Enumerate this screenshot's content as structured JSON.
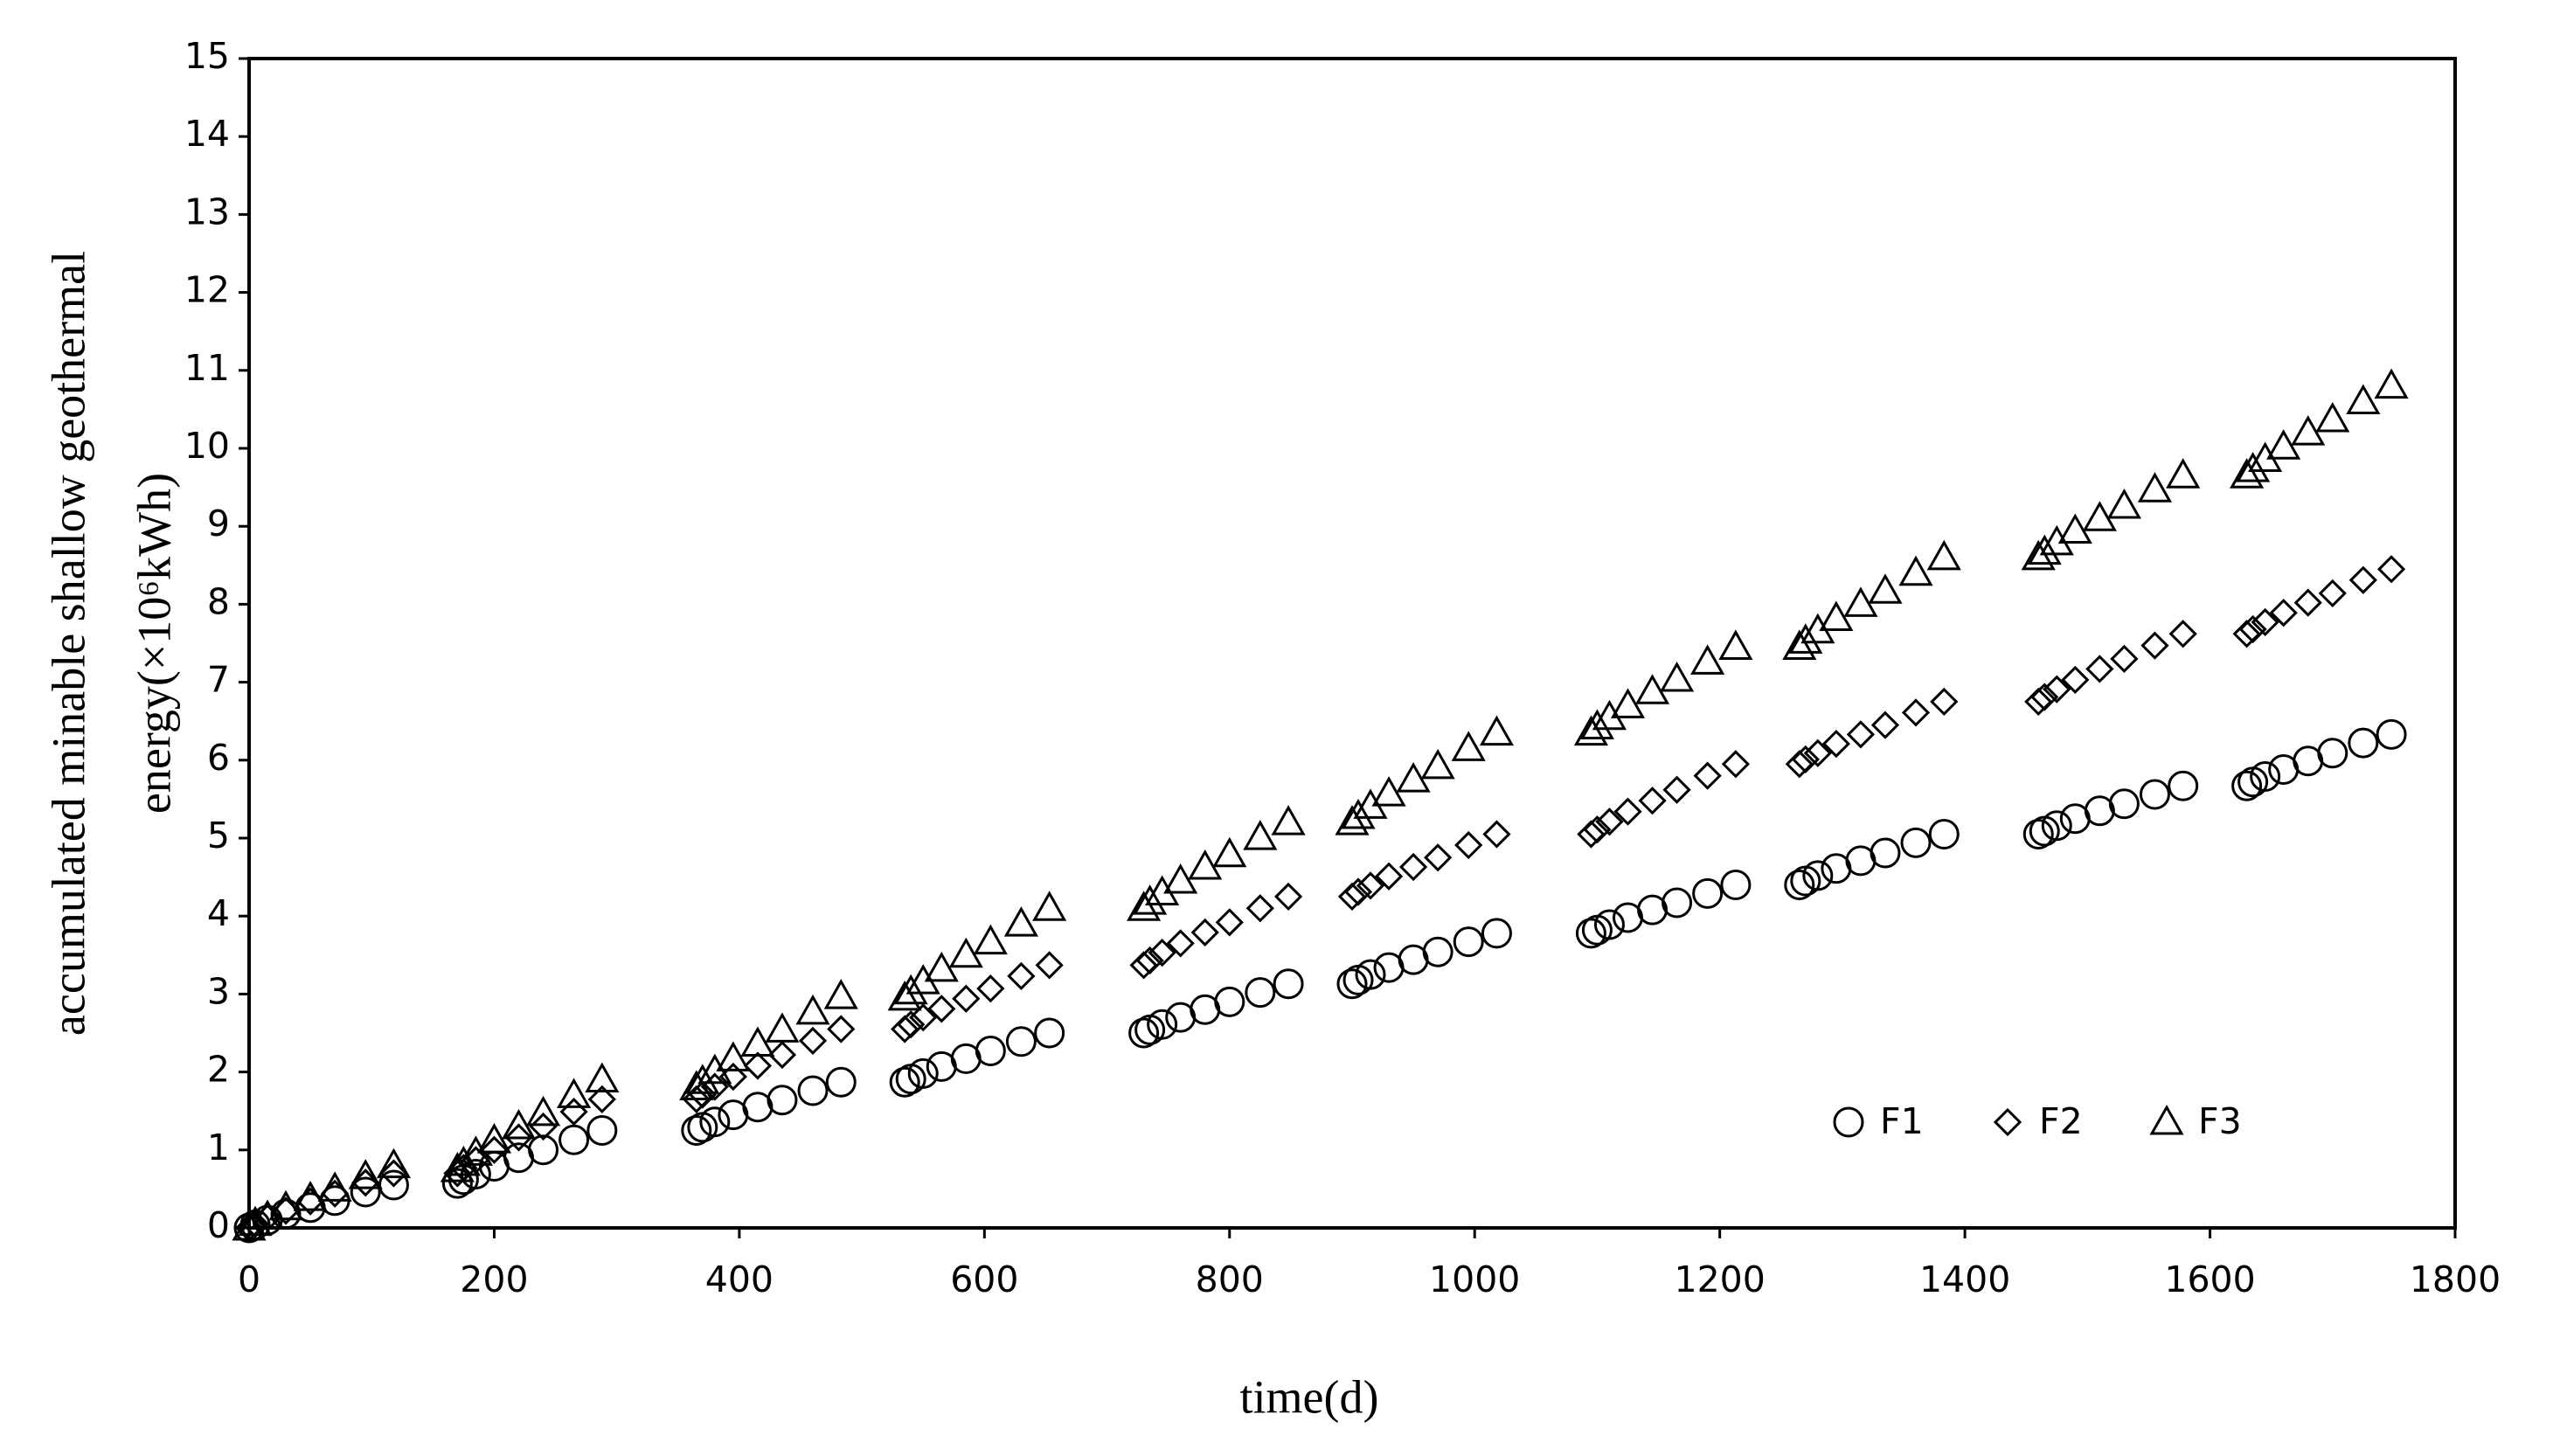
{
  "chart_data": {
    "type": "scatter",
    "x_label": "time(d)",
    "y_label": [
      "accumulated minable shallow geothermal",
      "energy(×10⁶kWh)"
    ],
    "x": [
      0,
      5,
      15,
      30,
      50,
      70,
      95,
      118,
      170,
      175,
      185,
      200,
      220,
      240,
      265,
      288,
      365,
      370,
      380,
      395,
      415,
      435,
      460,
      483,
      535,
      540,
      550,
      565,
      585,
      605,
      630,
      653,
      730,
      735,
      745,
      760,
      780,
      800,
      825,
      848,
      900,
      905,
      915,
      930,
      950,
      970,
      995,
      1018,
      1095,
      1100,
      1110,
      1125,
      1145,
      1165,
      1190,
      1213,
      1265,
      1270,
      1280,
      1295,
      1315,
      1335,
      1360,
      1383,
      1460,
      1465,
      1475,
      1490,
      1510,
      1530,
      1555,
      1578,
      1630,
      1635,
      1645,
      1660,
      1680,
      1700,
      1725,
      1748
    ],
    "series": [
      {
        "name": "F1",
        "marker": "circle",
        "color": "#000000",
        "values": [
          0,
          0.04,
          0.1,
          0.18,
          0.26,
          0.35,
          0.46,
          0.55,
          0.57,
          0.62,
          0.69,
          0.79,
          0.9,
          1.0,
          1.13,
          1.25,
          1.25,
          1.29,
          1.36,
          1.45,
          1.55,
          1.64,
          1.76,
          1.87,
          1.87,
          1.91,
          1.98,
          2.07,
          2.17,
          2.27,
          2.39,
          2.5,
          2.5,
          2.54,
          2.61,
          2.7,
          2.8,
          2.9,
          3.02,
          3.13,
          3.13,
          3.18,
          3.25,
          3.34,
          3.44,
          3.54,
          3.67,
          3.78,
          3.78,
          3.82,
          3.89,
          3.98,
          4.08,
          4.17,
          4.29,
          4.4,
          4.4,
          4.45,
          4.52,
          4.61,
          4.71,
          4.81,
          4.94,
          5.05,
          5.05,
          5.09,
          5.16,
          5.25,
          5.35,
          5.44,
          5.56,
          5.67,
          5.67,
          5.72,
          5.79,
          5.88,
          5.99,
          6.09,
          6.22,
          6.33
        ]
      },
      {
        "name": "F2",
        "marker": "diamond",
        "color": "#000000",
        "values": [
          0,
          0.05,
          0.13,
          0.22,
          0.34,
          0.44,
          0.58,
          0.7,
          0.7,
          0.77,
          0.87,
          1.0,
          1.16,
          1.3,
          1.49,
          1.65,
          1.65,
          1.71,
          1.81,
          1.94,
          2.08,
          2.22,
          2.4,
          2.55,
          2.55,
          2.61,
          2.7,
          2.81,
          2.94,
          3.07,
          3.23,
          3.37,
          3.37,
          3.43,
          3.53,
          3.65,
          3.79,
          3.92,
          4.1,
          4.25,
          4.25,
          4.31,
          4.39,
          4.51,
          4.63,
          4.75,
          4.91,
          5.05,
          5.05,
          5.11,
          5.21,
          5.34,
          5.48,
          5.62,
          5.8,
          5.95,
          5.95,
          6.01,
          6.09,
          6.21,
          6.33,
          6.45,
          6.61,
          6.75,
          6.75,
          6.81,
          6.91,
          7.03,
          7.17,
          7.3,
          7.47,
          7.62,
          7.62,
          7.68,
          7.77,
          7.89,
          8.02,
          8.14,
          8.31,
          8.45
        ]
      },
      {
        "name": "F3",
        "marker": "triangle",
        "color": "#000000",
        "values": [
          0,
          0.06,
          0.14,
          0.26,
          0.38,
          0.5,
          0.66,
          0.8,
          0.75,
          0.83,
          0.96,
          1.12,
          1.3,
          1.47,
          1.7,
          1.9,
          1.8,
          1.88,
          2.01,
          2.17,
          2.36,
          2.54,
          2.77,
          2.97,
          2.95,
          3.03,
          3.16,
          3.32,
          3.5,
          3.67,
          3.9,
          4.1,
          4.1,
          4.18,
          4.3,
          4.45,
          4.63,
          4.79,
          5.01,
          5.2,
          5.2,
          5.28,
          5.41,
          5.57,
          5.75,
          5.92,
          6.15,
          6.35,
          6.35,
          6.43,
          6.55,
          6.7,
          6.88,
          7.04,
          7.26,
          7.45,
          7.45,
          7.53,
          7.66,
          7.82,
          8.0,
          8.17,
          8.4,
          8.6,
          8.6,
          8.67,
          8.79,
          8.94,
          9.1,
          9.26,
          9.47,
          9.65,
          9.65,
          9.73,
          9.86,
          10.02,
          10.2,
          10.37,
          10.6,
          10.8
        ]
      }
    ],
    "xlim": [
      0,
      1800
    ],
    "xticks": [
      0,
      200,
      400,
      600,
      800,
      1000,
      1200,
      1400,
      1600,
      1800
    ],
    "ylim": [
      0,
      15
    ],
    "yticks": [
      0,
      1,
      2,
      3,
      4,
      5,
      6,
      7,
      8,
      9,
      10,
      11,
      12,
      13,
      14,
      15
    ],
    "grid": false,
    "legend_position": "lower right"
  }
}
